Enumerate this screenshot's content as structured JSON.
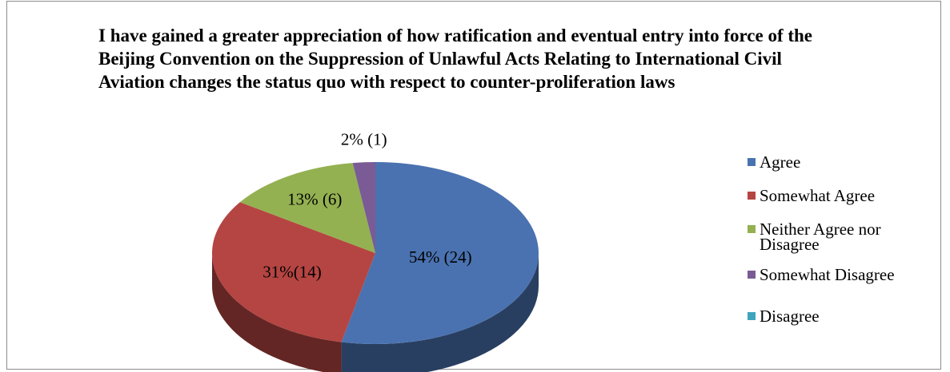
{
  "chart_data": {
    "type": "pie",
    "title": "I have gained a greater appreciation of how ratification and eventual entry into force of the Beijing Convention on the Suppression of Unlawful Acts Relating to International Civil Aviation changes the status quo with respect to counter-proliferation laws",
    "categories": [
      "Agree",
      "Somewhat Agree",
      "Neither Agree nor Disagree",
      "Somewhat Disagree",
      "Disagree"
    ],
    "values": [
      24,
      14,
      6,
      1,
      0
    ],
    "data_labels": [
      "54% (24)",
      "31%(14)",
      "13% (6)",
      "2% (1)",
      ""
    ],
    "colors": [
      "#4a72b0",
      "#b54542",
      "#93b151",
      "#7a5b95",
      "#3fa4bd"
    ],
    "legend_position": "right",
    "three_d": true
  }
}
